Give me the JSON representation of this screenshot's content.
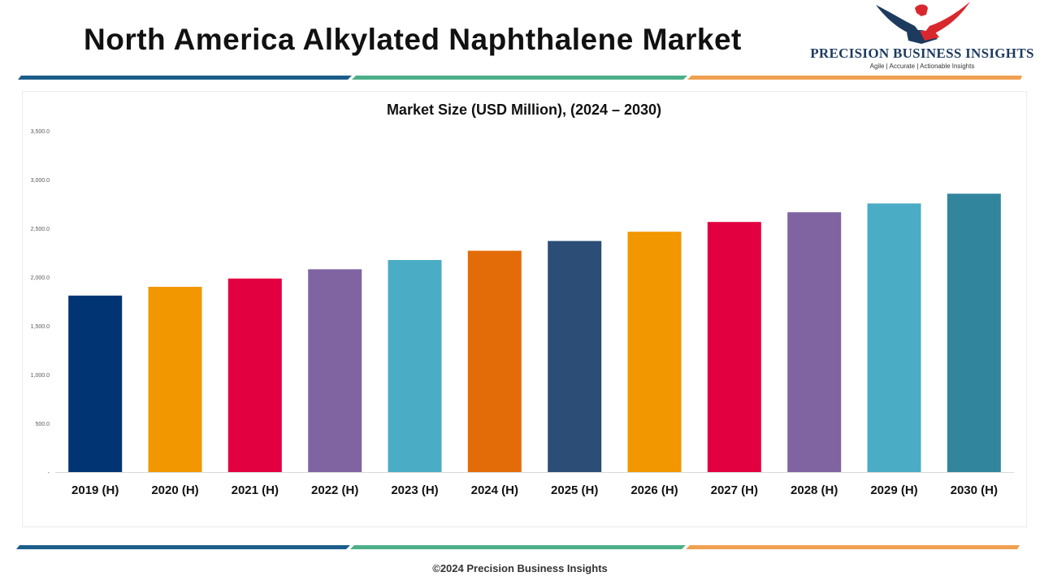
{
  "header": {
    "title": "North America Alkylated Naphthalene Market"
  },
  "logo": {
    "name": "PRECISION BUSINESS INSIGHTS",
    "tagline": "Agile | Accurate | Actionable Insights",
    "icon": "eagle-handshake-icon",
    "colors": {
      "navy": "#1d3a5f",
      "red": "#d9272e"
    }
  },
  "dividers": {
    "colors": [
      "#1b5e8a",
      "#4caf8a",
      "#f0a050"
    ]
  },
  "chart_data": {
    "type": "bar",
    "title": "Market Size (USD Million), (2024 – 2030)",
    "xlabel": "",
    "ylabel": "",
    "categories": [
      "2019 (H)",
      "2020 (H)",
      "2021 (H)",
      "2022 (H)",
      "2023 (H)",
      "2024 (H)",
      "2025 (H)",
      "2026 (H)",
      "2027 (H)",
      "2028 (H)",
      "2029 (H)",
      "2030 (H)"
    ],
    "values": [
      1810,
      1900,
      1985,
      2080,
      2175,
      2270,
      2370,
      2465,
      2565,
      2665,
      2755,
      2855
    ],
    "colors": [
      "#003473",
      "#f29700",
      "#e30040",
      "#8064a2",
      "#4bacc6",
      "#e36c09",
      "#2c4d75",
      "#f29700",
      "#e30040",
      "#8064a2",
      "#4bacc6",
      "#31859c"
    ],
    "ylim": [
      0,
      3500
    ],
    "yticks": [
      "-",
      "500.0",
      "1,000.0",
      "1,500.0",
      "2,000.0",
      "2,500.0",
      "3,000.0",
      "3,500.0"
    ],
    "grid": false,
    "legend": "none"
  },
  "footer": {
    "copyright": "©2024 Precision Business Insights"
  }
}
